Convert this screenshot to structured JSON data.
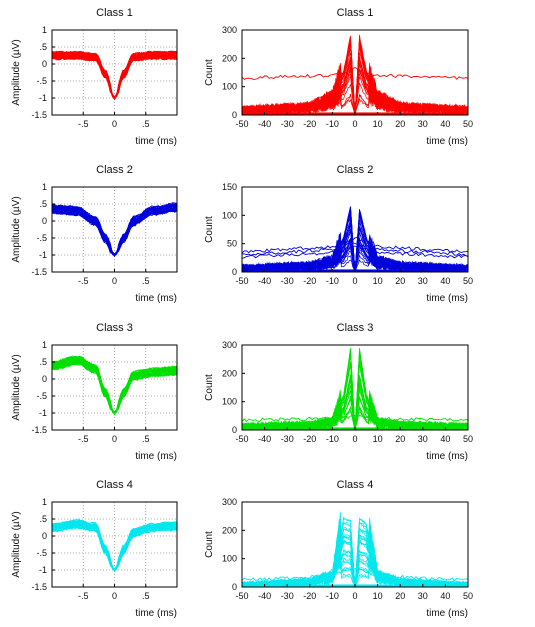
{
  "colors": {
    "class1": "#ff0000",
    "class2": "#0000dd",
    "class3": "#00e000",
    "class4": "#00e8ee"
  },
  "chart_data": [
    {
      "type": "line",
      "title": "Class 1",
      "xlabel": "time (ms)",
      "ylabel": "Amplitude (µV)",
      "xlim": [
        -1.0,
        1.0
      ],
      "ylim": [
        -1.5,
        1
      ],
      "xticks": [
        -0.5,
        0,
        0.5
      ],
      "yticks": [
        1,
        0.5,
        0,
        -0.5,
        -1,
        -1.5
      ],
      "grid": true,
      "color": "#ff0000",
      "series": [
        {
          "x": [
            -1.0,
            -0.6,
            -0.3,
            -0.15,
            0,
            0.15,
            0.3,
            0.6,
            1.0
          ],
          "y": [
            0.25,
            0.25,
            0.2,
            -0.3,
            -1.0,
            -0.3,
            0.2,
            0.25,
            0.25
          ]
        }
      ]
    },
    {
      "type": "line",
      "title": "Class 1",
      "xlabel": "time (ms)",
      "ylabel": "Count",
      "xlim": [
        -50,
        50
      ],
      "ylim": [
        0,
        300
      ],
      "xticks": [
        -50,
        -40,
        -30,
        -20,
        -10,
        0,
        10,
        20,
        30,
        40,
        50
      ],
      "yticks": [
        0,
        100,
        200,
        300
      ],
      "color": "#ff0000",
      "series": [
        {
          "x": [
            -50,
            -30,
            -10,
            -3,
            0,
            3,
            10,
            30,
            50
          ],
          "y": [
            130,
            135,
            140,
            150,
            170,
            150,
            140,
            135,
            128
          ]
        },
        {
          "x": [
            -50,
            -20,
            -10,
            -5,
            -2,
            0,
            2,
            5,
            10,
            20,
            50
          ],
          "y": [
            20,
            30,
            60,
            150,
            270,
            0,
            270,
            150,
            60,
            30,
            20
          ]
        }
      ]
    },
    {
      "type": "line",
      "title": "Class 2",
      "xlabel": "time (ms)",
      "ylabel": "Amplitude (µV)",
      "xlim": [
        -1.0,
        1.0
      ],
      "ylim": [
        -1.5,
        1
      ],
      "xticks": [
        -0.5,
        0,
        0.5
      ],
      "yticks": [
        1,
        0.5,
        0,
        -0.5,
        -1,
        -1.5
      ],
      "grid": true,
      "color": "#0000dd",
      "series": [
        {
          "x": [
            -1.0,
            -0.6,
            -0.3,
            -0.15,
            0,
            0.15,
            0.3,
            0.6,
            1.0
          ],
          "y": [
            0.35,
            0.3,
            0.0,
            -0.5,
            -1.0,
            -0.5,
            0.0,
            0.3,
            0.4
          ]
        }
      ]
    },
    {
      "type": "line",
      "title": "Class 2",
      "xlabel": "time (ms)",
      "ylabel": "Count",
      "xlim": [
        -50,
        50
      ],
      "ylim": [
        0,
        150
      ],
      "xticks": [
        -50,
        -40,
        -30,
        -20,
        -10,
        0,
        10,
        20,
        30,
        40,
        50
      ],
      "yticks": [
        0,
        50,
        100,
        150
      ],
      "color": "#0000dd",
      "series": [
        {
          "x": [
            -50,
            -30,
            -10,
            -3,
            0,
            3,
            10,
            30,
            50
          ],
          "y": [
            35,
            40,
            45,
            55,
            60,
            55,
            45,
            40,
            35
          ]
        },
        {
          "x": [
            -50,
            -20,
            -10,
            -5,
            -2,
            0,
            2,
            5,
            10,
            20,
            50
          ],
          "y": [
            8,
            12,
            20,
            60,
            115,
            0,
            110,
            60,
            20,
            12,
            8
          ]
        }
      ]
    },
    {
      "type": "line",
      "title": "Class 3",
      "xlabel": "time (ms)",
      "ylabel": "Amplitude (µV)",
      "xlim": [
        -1.0,
        1.0
      ],
      "ylim": [
        -1.5,
        1
      ],
      "xticks": [
        -0.5,
        0,
        0.5
      ],
      "yticks": [
        1,
        0.5,
        0,
        -0.5,
        -1,
        -1.5
      ],
      "grid": true,
      "color": "#00e000",
      "series": [
        {
          "x": [
            -1.0,
            -0.6,
            -0.3,
            -0.15,
            0,
            0.15,
            0.3,
            0.6,
            1.0
          ],
          "y": [
            0.4,
            0.55,
            0.3,
            -0.4,
            -1.0,
            -0.4,
            0.1,
            0.2,
            0.25
          ]
        }
      ]
    },
    {
      "type": "line",
      "title": "Class 3",
      "xlabel": "time (ms)",
      "ylabel": "Count",
      "xlim": [
        -50,
        50
      ],
      "ylim": [
        0,
        300
      ],
      "xticks": [
        -50,
        -40,
        -30,
        -20,
        -10,
        0,
        10,
        20,
        30,
        40,
        50
      ],
      "yticks": [
        0,
        100,
        200,
        300
      ],
      "color": "#00e000",
      "series": [
        {
          "x": [
            -50,
            -30,
            -10,
            -3,
            0,
            3,
            10,
            30,
            50
          ],
          "y": [
            35,
            38,
            40,
            45,
            50,
            45,
            40,
            38,
            35
          ]
        },
        {
          "x": [
            -50,
            -20,
            -10,
            -5,
            -2,
            0,
            2,
            5,
            10,
            20,
            50
          ],
          "y": [
            15,
            20,
            30,
            120,
            280,
            0,
            280,
            120,
            30,
            20,
            15
          ]
        }
      ]
    },
    {
      "type": "line",
      "title": "Class 4",
      "xlabel": "time (ms)",
      "ylabel": "Amplitude (µV)",
      "xlim": [
        -1.0,
        1.0
      ],
      "ylim": [
        -1.5,
        1
      ],
      "xticks": [
        -0.5,
        0,
        0.5
      ],
      "yticks": [
        1,
        0.5,
        0,
        -0.5,
        -1,
        -1.5
      ],
      "grid": true,
      "color": "#00e8ee",
      "series": [
        {
          "x": [
            -1.0,
            -0.6,
            -0.3,
            -0.15,
            0,
            0.15,
            0.3,
            0.6,
            1.0
          ],
          "y": [
            0.25,
            0.35,
            0.25,
            -0.4,
            -1.0,
            -0.4,
            0.1,
            0.25,
            0.3
          ]
        }
      ]
    },
    {
      "type": "line",
      "title": "Class 4",
      "xlabel": "time (ms)",
      "ylabel": "Count",
      "xlim": [
        -50,
        50
      ],
      "ylim": [
        0,
        300
      ],
      "xticks": [
        -50,
        -40,
        -30,
        -20,
        -10,
        0,
        10,
        20,
        30,
        40,
        50
      ],
      "yticks": [
        0,
        100,
        200,
        300
      ],
      "color": "#00e8ee",
      "series": [
        {
          "x": [
            -50,
            -30,
            -10,
            -3,
            0,
            3,
            10,
            30,
            50
          ],
          "y": [
            25,
            30,
            40,
            60,
            70,
            60,
            40,
            30,
            25
          ]
        },
        {
          "x": [
            -50,
            -20,
            -10,
            -5,
            -2,
            0,
            2,
            5,
            10,
            20,
            50
          ],
          "y": [
            10,
            20,
            40,
            240,
            230,
            0,
            240,
            220,
            40,
            20,
            10
          ]
        }
      ]
    }
  ]
}
